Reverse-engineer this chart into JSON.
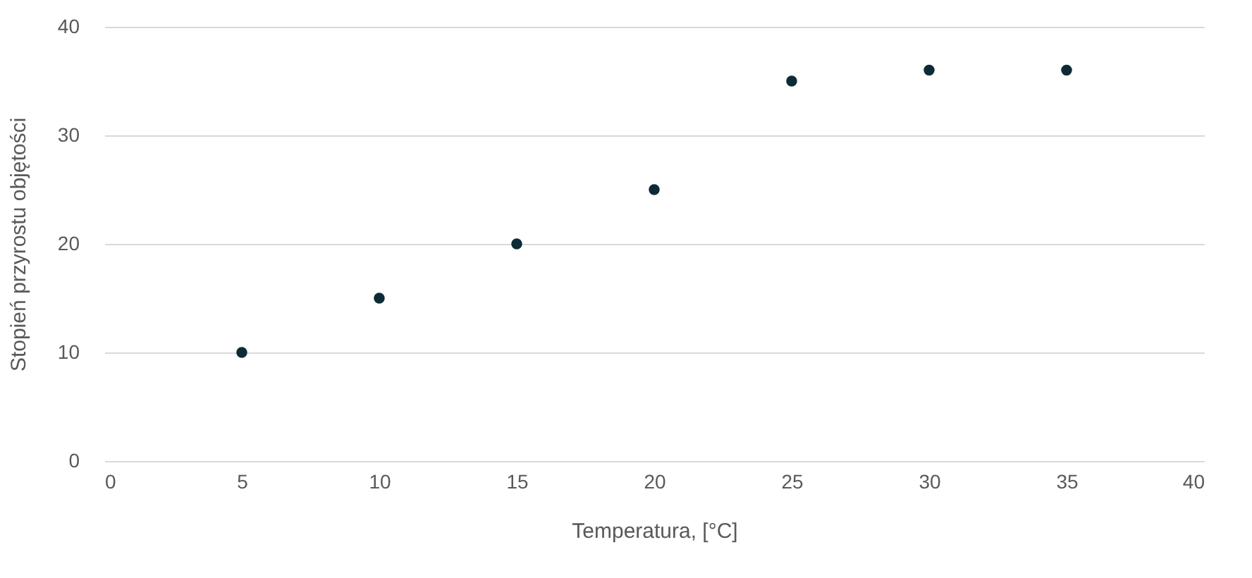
{
  "chart_data": {
    "type": "scatter",
    "xlabel": "Temperatura, [°C]",
    "ylabel": "Stopień przyrostu objętości",
    "x": [
      5,
      10,
      15,
      20,
      25,
      30,
      35
    ],
    "series": [
      {
        "color": "#0d2b36",
        "values": [
          10,
          15,
          20,
          25,
          35,
          36,
          36
        ]
      }
    ],
    "xlim": [
      0,
      40
    ],
    "xticks": [
      0,
      5,
      10,
      15,
      20,
      25,
      30,
      35,
      40
    ],
    "ylim": [
      0,
      40
    ],
    "yticks": [
      0,
      10,
      20,
      30,
      40
    ],
    "grid": "y",
    "marker": "circle"
  }
}
